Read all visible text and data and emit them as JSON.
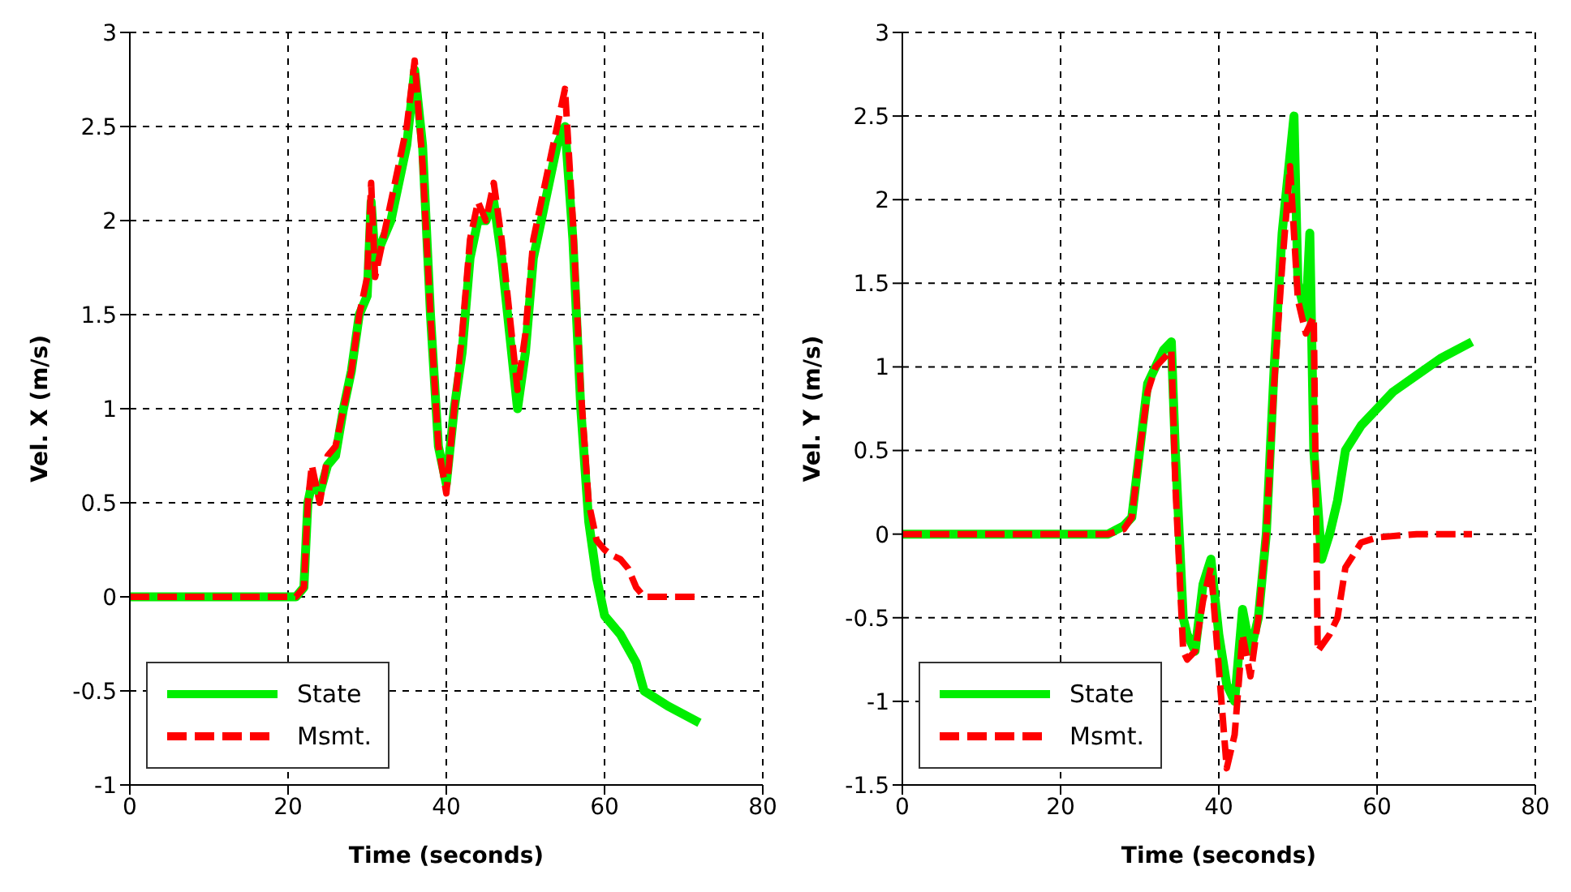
{
  "chart_data": [
    {
      "type": "line",
      "xlabel": "Time (seconds)",
      "ylabel": "Vel. X (m/s)",
      "xlim": [
        0,
        80
      ],
      "xticks": [
        0,
        20,
        40,
        60,
        80
      ],
      "ylim": [
        -1,
        3
      ],
      "yticks": [
        -1,
        -0.5,
        0,
        0.5,
        1,
        1.5,
        2,
        2.5,
        3
      ],
      "grid": true,
      "legend": "bottom left",
      "marker": "none",
      "series": [
        {
          "name": "State",
          "color": "#00ee00",
          "line_style": "solid",
          "x": [
            0,
            21,
            22,
            22.5,
            23,
            24,
            25,
            26,
            27,
            28,
            29,
            30,
            30.5,
            31,
            32,
            33,
            34,
            35,
            36,
            37,
            38,
            39,
            40,
            41,
            42,
            43,
            44,
            45,
            46,
            47,
            48,
            49,
            50,
            51,
            52,
            53,
            54,
            55,
            56,
            57,
            58,
            59,
            60,
            62,
            64,
            65,
            68,
            72
          ],
          "values": [
            0,
            0,
            0.05,
            0.5,
            0.6,
            0.55,
            0.7,
            0.75,
            1.0,
            1.2,
            1.5,
            1.6,
            2.1,
            1.8,
            1.9,
            2.0,
            2.2,
            2.4,
            2.8,
            2.4,
            1.5,
            0.8,
            0.6,
            1.0,
            1.3,
            1.8,
            2.0,
            2.0,
            2.1,
            1.8,
            1.4,
            1.0,
            1.3,
            1.8,
            2.0,
            2.2,
            2.4,
            2.5,
            1.9,
            1.0,
            0.4,
            0.1,
            -0.1,
            -0.2,
            -0.35,
            -0.5,
            -0.58,
            -0.67
          ]
        },
        {
          "name": "Msmt.",
          "color": "#ff0000",
          "line_style": "dashed",
          "x": [
            0,
            21,
            22,
            22.5,
            23,
            24,
            25,
            26,
            27,
            28,
            29,
            30,
            30.5,
            31,
            32,
            33,
            34,
            35,
            36,
            37,
            38,
            39,
            40,
            41,
            42,
            43,
            44,
            45,
            46,
            47,
            48,
            49,
            50,
            51,
            52,
            53,
            54,
            55,
            56,
            57,
            58,
            59,
            60,
            61,
            62,
            63,
            64,
            65,
            72
          ],
          "values": [
            0,
            0,
            0.05,
            0.5,
            0.7,
            0.5,
            0.75,
            0.8,
            1.0,
            1.2,
            1.5,
            1.7,
            2.2,
            1.7,
            1.9,
            2.1,
            2.3,
            2.5,
            2.85,
            2.3,
            1.5,
            0.8,
            0.55,
            1.0,
            1.4,
            1.9,
            2.1,
            2.0,
            2.2,
            1.9,
            1.5,
            1.1,
            1.4,
            1.9,
            2.1,
            2.3,
            2.5,
            2.7,
            2.0,
            1.1,
            0.5,
            0.3,
            0.25,
            0.22,
            0.2,
            0.15,
            0.05,
            0,
            0
          ]
        }
      ]
    },
    {
      "type": "line",
      "xlabel": "Time (seconds)",
      "ylabel": "Vel. Y (m/s)",
      "xlim": [
        0,
        80
      ],
      "xticks": [
        0,
        20,
        40,
        60,
        80
      ],
      "ylim": [
        -1.5,
        3
      ],
      "yticks": [
        -1.5,
        -1,
        -0.5,
        0,
        0.5,
        1,
        1.5,
        2,
        2.5,
        3
      ],
      "grid": true,
      "legend": "bottom left",
      "marker": "none",
      "series": [
        {
          "name": "State",
          "color": "#00ee00",
          "line_style": "solid",
          "x": [
            0,
            26,
            28,
            29,
            30,
            31,
            32,
            33,
            34,
            34.5,
            35.5,
            36,
            37,
            38,
            39,
            40,
            41,
            42,
            43,
            44,
            45,
            46,
            47,
            48,
            49.5,
            50,
            51,
            51.5,
            52,
            53,
            54,
            55,
            56,
            58,
            60,
            62,
            65,
            68,
            72
          ],
          "values": [
            0,
            0,
            0.05,
            0.1,
            0.5,
            0.9,
            1.0,
            1.1,
            1.15,
            0.5,
            -0.5,
            -0.6,
            -0.7,
            -0.3,
            -0.15,
            -0.6,
            -0.9,
            -1.0,
            -0.45,
            -0.7,
            -0.5,
            0,
            1.0,
            1.8,
            2.5,
            1.5,
            1.3,
            1.8,
            0.5,
            -0.15,
            0,
            0.2,
            0.5,
            0.65,
            0.75,
            0.85,
            0.95,
            1.05,
            1.15
          ]
        },
        {
          "name": "Msmt.",
          "color": "#ff0000",
          "line_style": "dashed",
          "x": [
            0,
            26,
            28,
            29,
            30,
            31,
            32,
            33,
            34,
            34.5,
            35.5,
            36,
            37,
            38,
            39,
            40,
            41,
            42,
            43,
            44,
            45,
            46,
            47,
            48,
            49,
            50,
            51,
            52,
            52.5,
            54,
            55,
            56,
            58,
            60,
            65,
            72
          ],
          "values": [
            0,
            0,
            0.03,
            0.1,
            0.5,
            0.85,
            1.0,
            1.05,
            1.1,
            0.3,
            -0.7,
            -0.75,
            -0.7,
            -0.4,
            -0.2,
            -0.8,
            -1.4,
            -1.2,
            -0.6,
            -0.85,
            -0.5,
            0,
            0.9,
            1.6,
            2.2,
            1.4,
            1.2,
            1.3,
            -0.7,
            -0.6,
            -0.5,
            -0.2,
            -0.05,
            -0.02,
            0,
            0
          ]
        }
      ]
    }
  ]
}
